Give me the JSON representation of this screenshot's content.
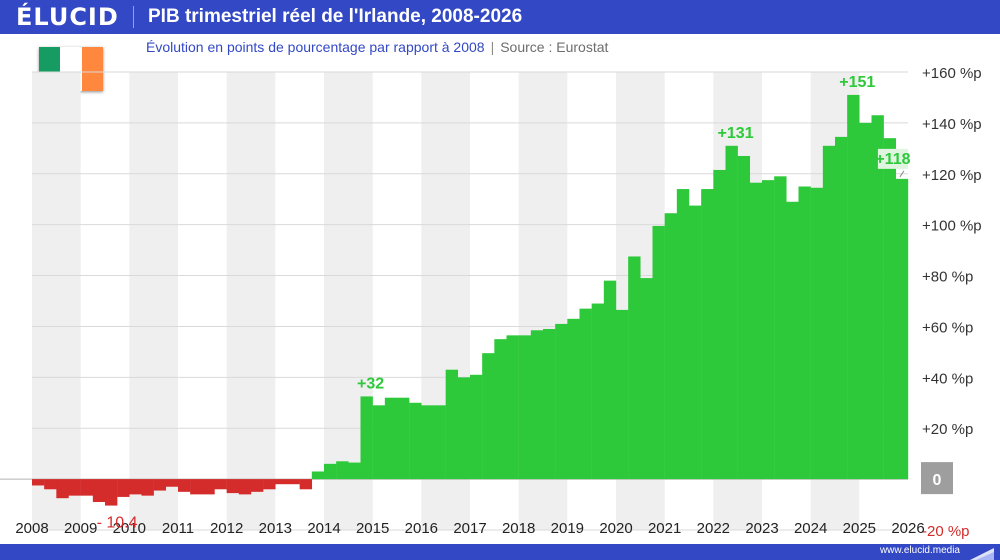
{
  "header": {
    "brand": "ÉLUCID",
    "title": "PIB trimestriel réel de l'Irlande, 2008-2026",
    "subtitle": "Évolution en points de pourcentage par rapport à 2008",
    "source": "Source : Eurostat"
  },
  "flag": {
    "colors": [
      "#169b62",
      "#ffffff",
      "#ff883e"
    ]
  },
  "footer": {
    "url": "www.elucid.media"
  },
  "colors": {
    "positive": "#2dc93a",
    "negative": "#d42b2b",
    "band": "#efefef",
    "grid": "#d9d9d9",
    "zero_badge": "#9e9e9e"
  },
  "chart_data": {
    "type": "bar",
    "xlabel": "",
    "ylabel": "",
    "ylim": [
      -20,
      160
    ],
    "y_ticks": [
      {
        "value": 160,
        "label": "+160 %p"
      },
      {
        "value": 140,
        "label": "+140 %p"
      },
      {
        "value": 120,
        "label": "+120 %p"
      },
      {
        "value": 100,
        "label": "+100 %p"
      },
      {
        "value": 80,
        "label": "+80 %p"
      },
      {
        "value": 60,
        "label": "+60 %p"
      },
      {
        "value": 40,
        "label": "+40 %p"
      },
      {
        "value": 20,
        "label": "+20 %p"
      },
      {
        "value": 0,
        "label": "0"
      },
      {
        "value": -20,
        "label": "-20 %p"
      }
    ],
    "x_ticks": [
      "2008",
      "2009",
      "2010",
      "2011",
      "2012",
      "2013",
      "2014",
      "2015",
      "2016",
      "2017",
      "2018",
      "2019",
      "2020",
      "2021",
      "2022",
      "2023",
      "2024",
      "2025",
      "2026"
    ],
    "x_range": [
      2008,
      2026
    ],
    "first_quarter": "2008-Q1",
    "values": [
      -2.5,
      -4,
      -7.5,
      -6.5,
      -6.5,
      -9,
      -10.4,
      -7,
      -6,
      -6.5,
      -4.5,
      -3,
      -5,
      -6,
      -6,
      -4,
      -5.5,
      -6,
      -5,
      -4,
      -2,
      -2,
      -4,
      3,
      6,
      7,
      6.5,
      32.5,
      29,
      32,
      32,
      30,
      29,
      29,
      43,
      40,
      41,
      49.5,
      55,
      56.5,
      56.5,
      58.5,
      59,
      61,
      63,
      67,
      69,
      78,
      66.5,
      87.5,
      79,
      99.5,
      104.5,
      114,
      107.5,
      114,
      121.5,
      131,
      127,
      116.5,
      117.5,
      119,
      109,
      115,
      114.5,
      131,
      134.5,
      151,
      140,
      143,
      134,
      118
    ],
    "annotations": [
      {
        "label": "- 10.4",
        "value": -10.4
      },
      {
        "label": "+32",
        "value": 32.5
      },
      {
        "label": "+131",
        "value": 131
      },
      {
        "label": "+151",
        "value": 151
      },
      {
        "label": "+118",
        "value": 118
      }
    ]
  }
}
